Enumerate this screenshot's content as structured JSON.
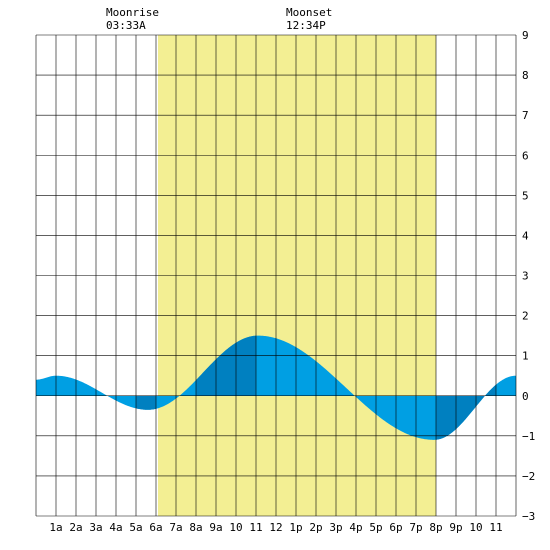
{
  "header": {
    "moonrise_label": "Moonrise",
    "moonrise_time": "03:33A",
    "moonset_label": "Moonset",
    "moonset_time": "12:34P"
  },
  "colors": {
    "background": "#ffffff",
    "grid": "#000000",
    "daylight": "#f3ef93",
    "tide_light": "#009fe3",
    "tide_dark": "#0080c0"
  },
  "chart_data": {
    "type": "area",
    "title": "",
    "xlabel": "",
    "ylabel": "",
    "xlim": [
      0,
      24
    ],
    "ylim": [
      -3,
      9
    ],
    "grid": true,
    "x_tick_labels": [
      "1a",
      "2a",
      "3a",
      "4a",
      "5a",
      "6a",
      "7a",
      "8a",
      "9a",
      "10",
      "11",
      "12",
      "1p",
      "2p",
      "3p",
      "4p",
      "5p",
      "6p",
      "7p",
      "8p",
      "9p",
      "10",
      "11"
    ],
    "y_ticks": [
      -3,
      -2,
      -1,
      0,
      1,
      2,
      3,
      4,
      5,
      6,
      7,
      8,
      9
    ],
    "daylight_hours": [
      6.1,
      20.0
    ],
    "tide_extremes": [
      {
        "hour": 0.0,
        "height": 0.4
      },
      {
        "hour": 1.0,
        "height": 0.5
      },
      {
        "hour": 5.6,
        "height": -0.35
      },
      {
        "hour": 11.1,
        "height": 1.5
      },
      {
        "hour": 19.9,
        "height": -1.1
      },
      {
        "hour": 24.0,
        "height": 0.5
      }
    ],
    "shade_bands": [
      [
        5.0,
        6.0
      ],
      [
        8.0,
        11.0
      ],
      [
        20.0,
        23.0
      ]
    ]
  }
}
